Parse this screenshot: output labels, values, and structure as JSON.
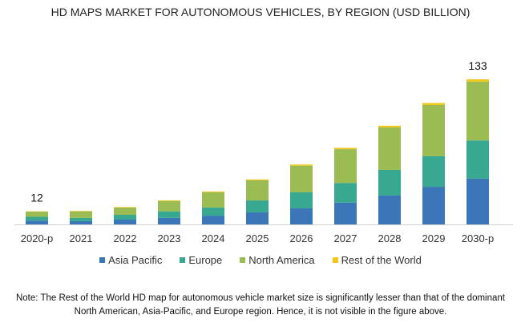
{
  "chart_data": {
    "type": "bar",
    "stacked": true,
    "title": "HD MAPS MARKET FOR AUTONOMOUS VEHICLES, BY REGION (USD BILLION)",
    "xlabel": "",
    "ylabel": "",
    "ylim": [
      0,
      140
    ],
    "grid": false,
    "legend_position": "bottom",
    "categories": [
      "2020-p",
      "2021",
      "2022",
      "2023",
      "2024",
      "2025",
      "2026",
      "2027",
      "2028",
      "2029",
      "2030-p"
    ],
    "series": [
      {
        "name": "Asia Pacific",
        "color": "#3a76b8",
        "values": [
          3.5,
          3,
          4.4,
          6,
          8,
          11,
          14.7,
          20,
          26.5,
          34.5,
          42
        ]
      },
      {
        "name": "Europe",
        "color": "#38a890",
        "values": [
          3.5,
          3,
          4.4,
          6,
          7.5,
          11,
          14.7,
          18,
          23.5,
          28,
          35
        ]
      },
      {
        "name": "North America",
        "color": "#9bbb53",
        "values": [
          4.7,
          6,
          6.6,
          9.5,
          14,
          18.5,
          24.5,
          31,
          39,
          47,
          54
        ]
      },
      {
        "name": "Rest of the World",
        "color": "#f5c518",
        "values": [
          0.3,
          0.4,
          0.5,
          0.6,
          0.7,
          0.8,
          1,
          1.2,
          1.5,
          1.8,
          2
        ]
      }
    ],
    "data_labels": [
      {
        "category": "2020-p",
        "text": "12"
      },
      {
        "category": "2030-p",
        "text": "133"
      }
    ]
  },
  "note": {
    "line1": "Note: The Rest of the World HD map for autonomous vehicle market size is significantly lesser than that of the dominant",
    "line2": "North American, Asia-Pacific, and Europe region. Hence, it is not visible in the figure above."
  }
}
